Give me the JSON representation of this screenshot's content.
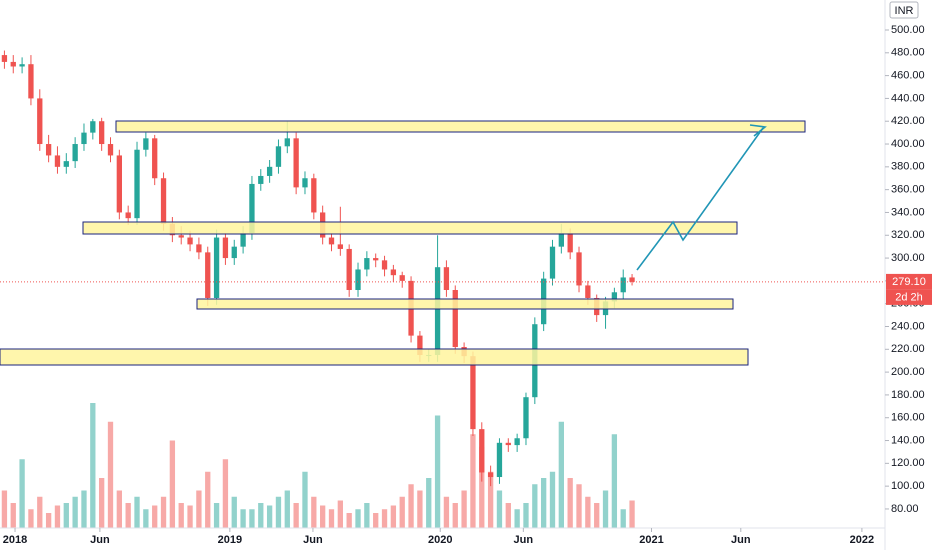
{
  "chart_data": {
    "type": "candlestick",
    "currency": "INR",
    "last_price": {
      "value": 279.1,
      "label": "279.10"
    },
    "countdown": "2d 2h",
    "up_color": "#26a69a",
    "down_color": "#ef5350",
    "grid": false,
    "xlim": [
      -0.5,
      99.5
    ],
    "xticks": [
      {
        "value": 1.2,
        "label": "2018"
      },
      {
        "value": 10.8,
        "label": "Jun"
      },
      {
        "value": 25.5,
        "label": "2019"
      },
      {
        "value": 34.9,
        "label": "Jun"
      },
      {
        "value": 49.3,
        "label": "2020"
      },
      {
        "value": 58.7,
        "label": "Jun"
      },
      {
        "value": 73.2,
        "label": "2021"
      },
      {
        "value": 83.3,
        "label": "Jun"
      },
      {
        "value": 97.0,
        "label": "2022"
      }
    ],
    "ylim": [
      63.3,
      526.3
    ],
    "yticks": [
      {
        "value": 80,
        "label": "80.00"
      },
      {
        "value": 100,
        "label": "100.00"
      },
      {
        "value": 120,
        "label": "120.00"
      },
      {
        "value": 140,
        "label": "140.00"
      },
      {
        "value": 160,
        "label": "160.00"
      },
      {
        "value": 180,
        "label": "180.00"
      },
      {
        "value": 200,
        "label": "200.00"
      },
      {
        "value": 220,
        "label": "220.00"
      },
      {
        "value": 240,
        "label": "240.00"
      },
      {
        "value": 260,
        "label": "260.00"
      },
      {
        "value": 280,
        "label": "280.00"
      },
      {
        "value": 300,
        "label": "300.00"
      },
      {
        "value": 320,
        "label": "320.00"
      },
      {
        "value": 340,
        "label": "340.00"
      },
      {
        "value": 360,
        "label": "360.00"
      },
      {
        "value": 380,
        "label": "380.00"
      },
      {
        "value": 400,
        "label": "400.00"
      },
      {
        "value": 420,
        "label": "420.00"
      },
      {
        "value": 440,
        "label": "440.00"
      },
      {
        "value": 460,
        "label": "460.00"
      },
      {
        "value": 480,
        "label": "480.00"
      },
      {
        "value": 500,
        "label": "500.00"
      }
    ],
    "open": [
      478,
      472,
      468,
      470,
      440,
      400,
      390,
      380,
      385,
      400,
      410,
      420,
      400,
      390,
      340,
      335,
      395,
      405,
      370,
      330,
      320,
      318,
      312,
      305,
      265,
      318,
      300,
      310,
      322,
      365,
      372,
      380,
      398,
      405,
      362,
      370,
      340,
      318,
      312,
      308,
      272,
      290,
      300,
      298,
      290,
      285,
      280,
      232,
      215,
      215,
      292,
      272,
      222,
      214,
      150,
      112,
      108,
      138,
      136,
      142,
      178,
      242,
      282,
      310,
      322,
      305,
      276,
      265,
      250,
      262,
      270,
      283
    ],
    "high": [
      482,
      478,
      476,
      478,
      448,
      408,
      398,
      392,
      406,
      418,
      422,
      423,
      406,
      395,
      346,
      402,
      410,
      408,
      375,
      336,
      328,
      324,
      318,
      310,
      325,
      322,
      316,
      328,
      372,
      378,
      386,
      404,
      420,
      410,
      376,
      374,
      346,
      322,
      345,
      312,
      296,
      306,
      304,
      302,
      294,
      288,
      284,
      236,
      220,
      320,
      298,
      276,
      226,
      218,
      156,
      118,
      142,
      142,
      146,
      182,
      248,
      288,
      316,
      330,
      326,
      310,
      280,
      268,
      266,
      274,
      290,
      286
    ],
    "low": [
      466,
      462,
      462,
      434,
      394,
      384,
      374,
      374,
      379,
      394,
      404,
      394,
      384,
      334,
      329,
      329,
      389,
      364,
      324,
      314,
      312,
      306,
      299,
      258,
      259,
      294,
      294,
      304,
      316,
      359,
      366,
      374,
      392,
      356,
      356,
      334,
      312,
      306,
      302,
      266,
      266,
      284,
      292,
      284,
      279,
      274,
      226,
      209,
      209,
      209,
      266,
      216,
      208,
      144,
      104,
      100,
      102,
      130,
      130,
      136,
      172,
      236,
      276,
      304,
      299,
      270,
      259,
      244,
      238,
      256,
      264,
      276
    ],
    "close": [
      472,
      468,
      470,
      440,
      400,
      390,
      380,
      385,
      400,
      410,
      420,
      400,
      390,
      340,
      335,
      395,
      405,
      370,
      330,
      320,
      318,
      312,
      305,
      265,
      318,
      300,
      310,
      322,
      365,
      372,
      380,
      398,
      405,
      362,
      370,
      340,
      318,
      312,
      308,
      272,
      290,
      300,
      298,
      290,
      285,
      280,
      232,
      215,
      215,
      292,
      272,
      222,
      214,
      150,
      112,
      108,
      138,
      136,
      142,
      178,
      242,
      282,
      310,
      322,
      305,
      276,
      265,
      250,
      262,
      270,
      283,
      279.1
    ],
    "volume": [
      30,
      20,
      55,
      15,
      25,
      12,
      18,
      20,
      25,
      30,
      100,
      40,
      85,
      30,
      20,
      25,
      15,
      18,
      25,
      70,
      20,
      18,
      30,
      45,
      20,
      55,
      25,
      15,
      15,
      20,
      18,
      25,
      30,
      20,
      45,
      25,
      18,
      15,
      22,
      12,
      15,
      20,
      12,
      15,
      18,
      25,
      35,
      30,
      40,
      90,
      25,
      20,
      30,
      75,
      65,
      45,
      30,
      20,
      15,
      20,
      35,
      40,
      45,
      85,
      40,
      35,
      25,
      20,
      30,
      75,
      15,
      22
    ]
  }
}
